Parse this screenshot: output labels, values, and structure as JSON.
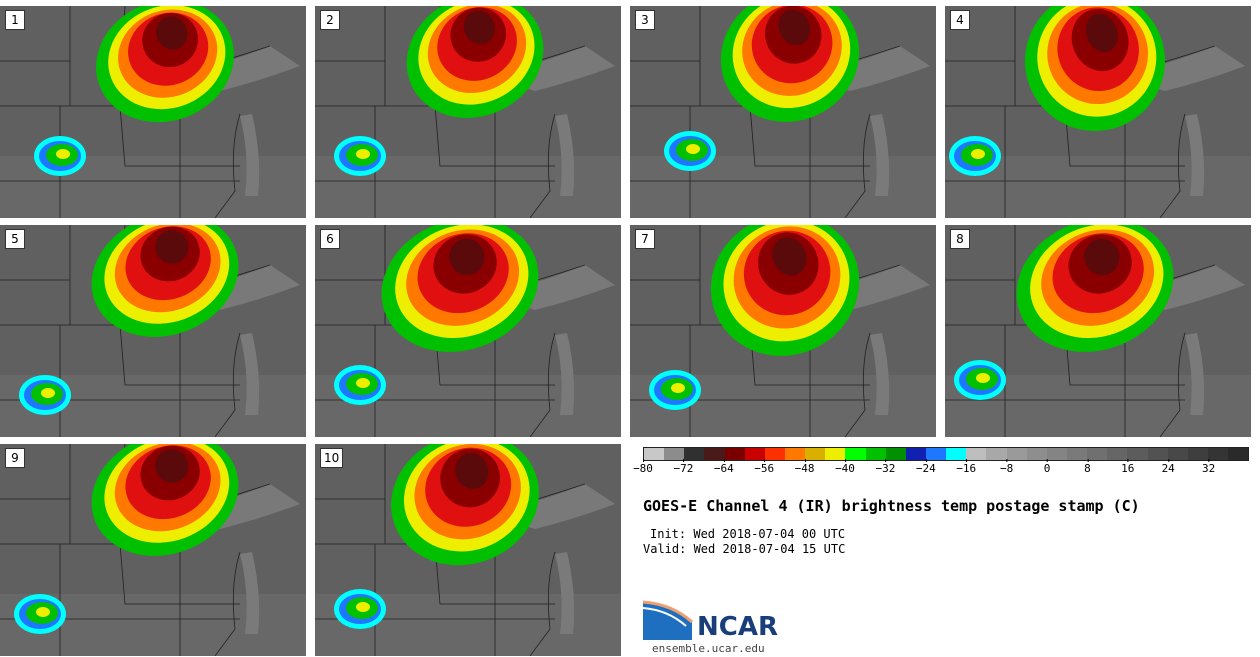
{
  "panels": [
    {
      "label": "1"
    },
    {
      "label": "2"
    },
    {
      "label": "3"
    },
    {
      "label": "4"
    },
    {
      "label": "5"
    },
    {
      "label": "6"
    },
    {
      "label": "7"
    },
    {
      "label": "8"
    },
    {
      "label": "9"
    },
    {
      "label": "10"
    }
  ],
  "colorbar": {
    "colors": [
      "#c8c8c8",
      "#8c8c8c",
      "#303030",
      "#4a1a1a",
      "#7a0000",
      "#c80000",
      "#ff3000",
      "#ff7800",
      "#d9b000",
      "#eeee00",
      "#00ff00",
      "#00c000",
      "#009000",
      "#1020b0",
      "#1e78ff",
      "#00ffff",
      "#bebebe",
      "#a8a8a8",
      "#9a9a9a",
      "#8e8e8e",
      "#848484",
      "#7a7a7a",
      "#707070",
      "#666666",
      "#5c5c5c",
      "#525252",
      "#484848",
      "#3e3e3e",
      "#343434",
      "#2a2a2a"
    ],
    "ticks": [
      "−80",
      "−72",
      "−64",
      "−56",
      "−48",
      "−40",
      "−32",
      "−24",
      "−16",
      "−8",
      "0",
      "8",
      "16",
      "24",
      "32"
    ]
  },
  "info": {
    "title": "GOES-E Channel 4 (IR) brightness temp postage stamp (C)",
    "init": "Init: Wed 2018-07-04 00 UTC",
    "valid": "Valid: Wed 2018-07-04 15 UTC"
  },
  "logo": {
    "name": "NCAR",
    "url": "ensemble.ucar.edu"
  }
}
